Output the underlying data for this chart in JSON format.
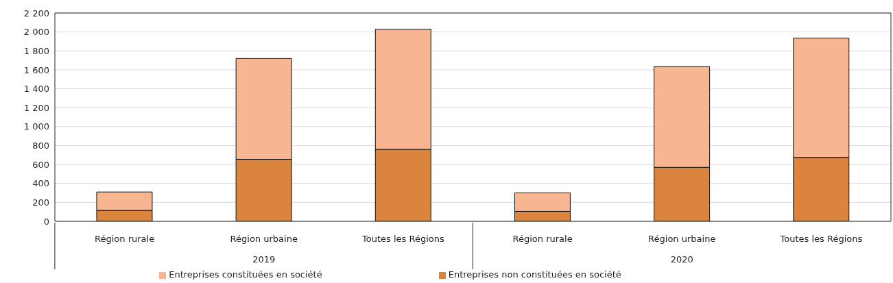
{
  "chart_data": {
    "type": "bar",
    "stacked": true,
    "categories": [
      "Région rurale",
      "Région urbaine",
      "Toutes les Régions",
      "Région rurale",
      "Région urbaine",
      "Toutes les Régions"
    ],
    "series": [
      {
        "name": "Entreprises non constituées en société",
        "color": "#db843d",
        "values": [
          115,
          655,
          760,
          105,
          570,
          675
        ]
      },
      {
        "name": "Entreprises constituées en société",
        "color": "#f8b591",
        "values": [
          195,
          1065,
          1270,
          195,
          1065,
          1260
        ]
      }
    ],
    "annotations": [
      "2019",
      "2020"
    ],
    "ylim": [
      0,
      2200
    ],
    "yticks": [
      0,
      200,
      400,
      600,
      800,
      {
        "value": 1000,
        "label": "1 000"
      },
      {
        "value": 1200,
        "label": "1 200"
      },
      {
        "value": 1400,
        "label": "1 400"
      },
      {
        "value": 1600,
        "label": "1 600"
      },
      {
        "value": 1800,
        "label": "1 800"
      },
      {
        "value": 2000,
        "label": "2 000"
      },
      {
        "value": 2200,
        "label": "2 200"
      }
    ],
    "grid": "y",
    "legend": "bottom"
  }
}
